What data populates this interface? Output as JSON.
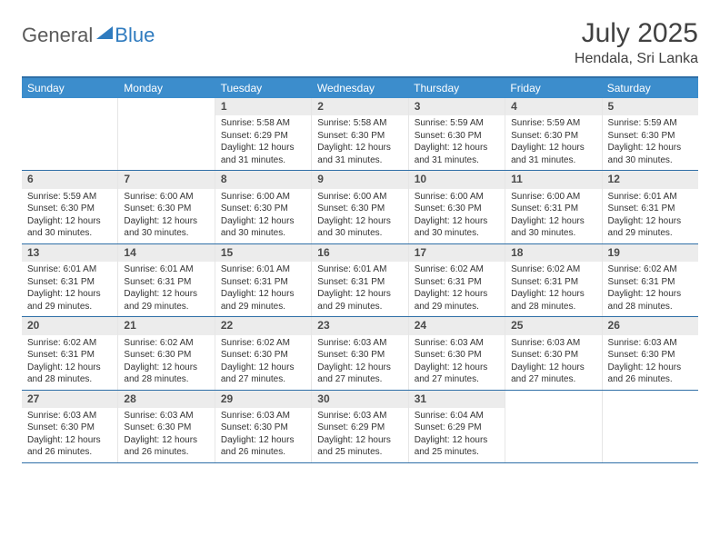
{
  "brand": {
    "word1": "General",
    "word2": "Blue"
  },
  "title": "July 2025",
  "location": "Hendala, Sri Lanka",
  "colors": {
    "header_bg": "#3c8dcc",
    "header_border": "#2f6fa7",
    "daynum_bg": "#ececec",
    "text": "#333333",
    "brand_gray": "#5a5a5a",
    "brand_blue": "#2f7bbf"
  },
  "day_headers": [
    "Sunday",
    "Monday",
    "Tuesday",
    "Wednesday",
    "Thursday",
    "Friday",
    "Saturday"
  ],
  "weeks": [
    [
      {
        "n": "",
        "sr": "",
        "ss": "",
        "dl": ""
      },
      {
        "n": "",
        "sr": "",
        "ss": "",
        "dl": ""
      },
      {
        "n": "1",
        "sr": "5:58 AM",
        "ss": "6:29 PM",
        "dl": "12 hours and 31 minutes."
      },
      {
        "n": "2",
        "sr": "5:58 AM",
        "ss": "6:30 PM",
        "dl": "12 hours and 31 minutes."
      },
      {
        "n": "3",
        "sr": "5:59 AM",
        "ss": "6:30 PM",
        "dl": "12 hours and 31 minutes."
      },
      {
        "n": "4",
        "sr": "5:59 AM",
        "ss": "6:30 PM",
        "dl": "12 hours and 31 minutes."
      },
      {
        "n": "5",
        "sr": "5:59 AM",
        "ss": "6:30 PM",
        "dl": "12 hours and 30 minutes."
      }
    ],
    [
      {
        "n": "6",
        "sr": "5:59 AM",
        "ss": "6:30 PM",
        "dl": "12 hours and 30 minutes."
      },
      {
        "n": "7",
        "sr": "6:00 AM",
        "ss": "6:30 PM",
        "dl": "12 hours and 30 minutes."
      },
      {
        "n": "8",
        "sr": "6:00 AM",
        "ss": "6:30 PM",
        "dl": "12 hours and 30 minutes."
      },
      {
        "n": "9",
        "sr": "6:00 AM",
        "ss": "6:30 PM",
        "dl": "12 hours and 30 minutes."
      },
      {
        "n": "10",
        "sr": "6:00 AM",
        "ss": "6:30 PM",
        "dl": "12 hours and 30 minutes."
      },
      {
        "n": "11",
        "sr": "6:00 AM",
        "ss": "6:31 PM",
        "dl": "12 hours and 30 minutes."
      },
      {
        "n": "12",
        "sr": "6:01 AM",
        "ss": "6:31 PM",
        "dl": "12 hours and 29 minutes."
      }
    ],
    [
      {
        "n": "13",
        "sr": "6:01 AM",
        "ss": "6:31 PM",
        "dl": "12 hours and 29 minutes."
      },
      {
        "n": "14",
        "sr": "6:01 AM",
        "ss": "6:31 PM",
        "dl": "12 hours and 29 minutes."
      },
      {
        "n": "15",
        "sr": "6:01 AM",
        "ss": "6:31 PM",
        "dl": "12 hours and 29 minutes."
      },
      {
        "n": "16",
        "sr": "6:01 AM",
        "ss": "6:31 PM",
        "dl": "12 hours and 29 minutes."
      },
      {
        "n": "17",
        "sr": "6:02 AM",
        "ss": "6:31 PM",
        "dl": "12 hours and 29 minutes."
      },
      {
        "n": "18",
        "sr": "6:02 AM",
        "ss": "6:31 PM",
        "dl": "12 hours and 28 minutes."
      },
      {
        "n": "19",
        "sr": "6:02 AM",
        "ss": "6:31 PM",
        "dl": "12 hours and 28 minutes."
      }
    ],
    [
      {
        "n": "20",
        "sr": "6:02 AM",
        "ss": "6:31 PM",
        "dl": "12 hours and 28 minutes."
      },
      {
        "n": "21",
        "sr": "6:02 AM",
        "ss": "6:30 PM",
        "dl": "12 hours and 28 minutes."
      },
      {
        "n": "22",
        "sr": "6:02 AM",
        "ss": "6:30 PM",
        "dl": "12 hours and 27 minutes."
      },
      {
        "n": "23",
        "sr": "6:03 AM",
        "ss": "6:30 PM",
        "dl": "12 hours and 27 minutes."
      },
      {
        "n": "24",
        "sr": "6:03 AM",
        "ss": "6:30 PM",
        "dl": "12 hours and 27 minutes."
      },
      {
        "n": "25",
        "sr": "6:03 AM",
        "ss": "6:30 PM",
        "dl": "12 hours and 27 minutes."
      },
      {
        "n": "26",
        "sr": "6:03 AM",
        "ss": "6:30 PM",
        "dl": "12 hours and 26 minutes."
      }
    ],
    [
      {
        "n": "27",
        "sr": "6:03 AM",
        "ss": "6:30 PM",
        "dl": "12 hours and 26 minutes."
      },
      {
        "n": "28",
        "sr": "6:03 AM",
        "ss": "6:30 PM",
        "dl": "12 hours and 26 minutes."
      },
      {
        "n": "29",
        "sr": "6:03 AM",
        "ss": "6:30 PM",
        "dl": "12 hours and 26 minutes."
      },
      {
        "n": "30",
        "sr": "6:03 AM",
        "ss": "6:29 PM",
        "dl": "12 hours and 25 minutes."
      },
      {
        "n": "31",
        "sr": "6:04 AM",
        "ss": "6:29 PM",
        "dl": "12 hours and 25 minutes."
      },
      {
        "n": "",
        "sr": "",
        "ss": "",
        "dl": ""
      },
      {
        "n": "",
        "sr": "",
        "ss": "",
        "dl": ""
      }
    ]
  ],
  "labels": {
    "sunrise": "Sunrise: ",
    "sunset": "Sunset: ",
    "daylight": "Daylight: "
  }
}
